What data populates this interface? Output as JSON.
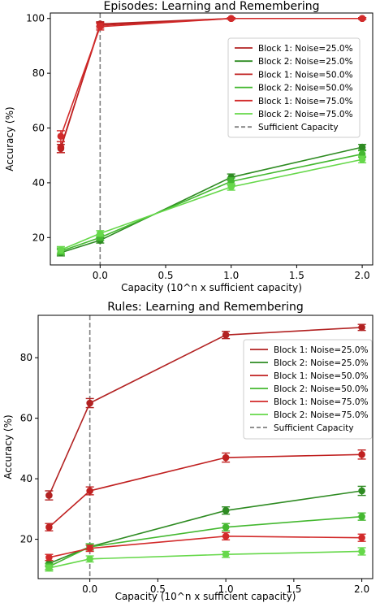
{
  "chart_data": [
    {
      "type": "line",
      "title": "Episodes: Learning and Remembering",
      "xlabel": "Capacity (10^n x sufficient capacity)",
      "ylabel": "Accuracy (%)",
      "x": [
        -0.3,
        0.0,
        1.0,
        2.0
      ],
      "xlim": [
        -0.38,
        2.08
      ],
      "ylim": [
        10,
        102
      ],
      "xticks": [
        0.0,
        0.5,
        1.0,
        1.5,
        2.0
      ],
      "xtick_labels": [
        "0.0",
        "0.5",
        "1.0",
        "1.5",
        "2.0"
      ],
      "yticks": [
        20,
        40,
        60,
        80,
        100
      ],
      "ytick_labels": [
        "20",
        "40",
        "60",
        "80",
        "100"
      ],
      "grid": false,
      "legend_position": "center-right",
      "reference_line": {
        "x": 0.0,
        "label": "Sufficient Capacity",
        "style": "dashed",
        "color": "#808080"
      },
      "series": [
        {
          "name": "Block 1:  Noise=25.0%",
          "color": "#b22222",
          "values": [
            52.5,
            98.0,
            100.0,
            100.0
          ],
          "errors": [
            1.5,
            0.8,
            0.3,
            0.3
          ]
        },
        {
          "name": "Block 2:  Noise=25.0%",
          "color": "#2e8b22",
          "values": [
            14.5,
            19.0,
            42.0,
            53.0
          ],
          "errors": [
            1.2,
            1.0,
            1.2,
            1.0
          ]
        },
        {
          "name": "Block 1:  Noise=50.0%",
          "color": "#c02020",
          "values": [
            53.0,
            97.5,
            100.0,
            100.0
          ],
          "errors": [
            2.0,
            1.0,
            0.3,
            0.3
          ]
        },
        {
          "name": "Block 2:  Noise=50.0%",
          "color": "#44b830",
          "values": [
            15.0,
            20.0,
            40.5,
            50.5
          ],
          "errors": [
            1.2,
            1.0,
            1.3,
            1.2
          ]
        },
        {
          "name": "Block 1:  Noise=75.0%",
          "color": "#d22a2a",
          "values": [
            57.0,
            97.0,
            100.0,
            100.0
          ],
          "errors": [
            2.0,
            1.2,
            0.3,
            0.3
          ]
        },
        {
          "name": "Block 2:  Noise=75.0%",
          "color": "#66d84a",
          "values": [
            15.5,
            21.5,
            38.5,
            48.5
          ],
          "errors": [
            1.2,
            1.0,
            1.2,
            1.2
          ]
        }
      ]
    },
    {
      "type": "line",
      "title": "Rules: Learning and Remembering",
      "xlabel": "Capacity (10^n x sufficient capacity)",
      "ylabel": "Accuracy (%)",
      "x": [
        -0.3,
        0.0,
        1.0,
        2.0
      ],
      "xlim": [
        -0.38,
        2.08
      ],
      "ylim": [
        7,
        94
      ],
      "xticks": [
        0.0,
        0.5,
        1.0,
        1.5,
        2.0
      ],
      "xtick_labels": [
        "0.0",
        "0.5",
        "1.0",
        "1.5",
        "2.0"
      ],
      "yticks": [
        20,
        40,
        60,
        80
      ],
      "ytick_labels": [
        "20",
        "40",
        "60",
        "80"
      ],
      "grid": false,
      "legend_position": "right",
      "reference_line": {
        "x": 0.0,
        "label": "Sufficient Capacity",
        "style": "dashed",
        "color": "#808080"
      },
      "series": [
        {
          "name": "Block 1:  Noise=25.0%",
          "color": "#b22222",
          "values": [
            34.5,
            65.0,
            87.5,
            90.0
          ],
          "errors": [
            1.5,
            1.5,
            1.2,
            1.0
          ]
        },
        {
          "name": "Block 2:  Noise=25.0%",
          "color": "#2e8b22",
          "values": [
            12.0,
            17.5,
            29.5,
            36.0
          ],
          "errors": [
            1.0,
            1.0,
            1.2,
            1.5
          ]
        },
        {
          "name": "Block 1:  Noise=50.0%",
          "color": "#c02020",
          "values": [
            24.0,
            36.0,
            47.0,
            48.0
          ],
          "errors": [
            1.2,
            1.3,
            1.5,
            1.5
          ]
        },
        {
          "name": "Block 2:  Noise=50.0%",
          "color": "#44b830",
          "values": [
            11.0,
            17.5,
            24.0,
            27.5
          ],
          "errors": [
            1.0,
            1.0,
            1.2,
            1.2
          ]
        },
        {
          "name": "Block 1:  Noise=75.0%",
          "color": "#d22a2a",
          "values": [
            14.0,
            17.0,
            21.0,
            20.5
          ],
          "errors": [
            1.0,
            1.0,
            1.2,
            1.2
          ]
        },
        {
          "name": "Block 2:  Noise=75.0%",
          "color": "#66d84a",
          "values": [
            10.5,
            13.5,
            15.0,
            16.0
          ],
          "errors": [
            1.0,
            1.0,
            1.0,
            1.2
          ]
        }
      ]
    }
  ]
}
